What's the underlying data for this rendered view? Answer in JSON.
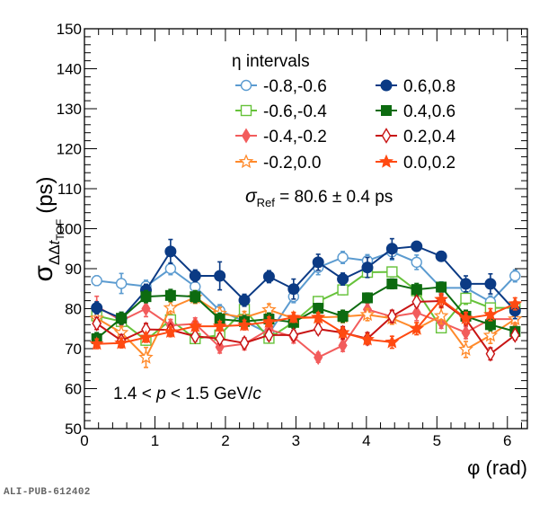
{
  "chart_data": {
    "type": "line",
    "title": "",
    "xlabel": "φ (rad)",
    "ylabel": {
      "main": "σ",
      "sub1": "ΔΔ",
      "sub_italic": "t",
      "sub2": "TOF",
      "unit": "(ps)"
    },
    "xlim": [
      0,
      6.2832
    ],
    "ylim": [
      50,
      150
    ],
    "xticks": [
      "0",
      "1",
      "2",
      "3",
      "4",
      "5",
      "6"
    ],
    "yticks": [
      "50",
      "60",
      "70",
      "80",
      "90",
      "100",
      "110",
      "120",
      "130",
      "140",
      "150"
    ],
    "grid": false,
    "legend": {
      "title": "η intervals",
      "position": "top-center",
      "columns": 2
    },
    "annotations": {
      "sigma_ref": {
        "symbol": "σ",
        "sub": "Ref",
        "text": " = 80.6 ± 0.4 ps"
      },
      "momentum": {
        "pre": "1.4 < ",
        "var": "p",
        "mid": " < 1.5 GeV/",
        "var2": "c"
      }
    },
    "x": [
      0.1745,
      0.5236,
      0.8727,
      1.2217,
      1.5708,
      1.9199,
      2.2689,
      2.618,
      2.9671,
      3.3161,
      3.6652,
      4.0143,
      4.3633,
      4.7124,
      5.0615,
      5.4105,
      5.7596,
      6.1087
    ],
    "series": [
      {
        "name": "-0.8,-0.6",
        "color": "#5b9bd0",
        "marker": "open-circle",
        "values": [
          87.0,
          86.3,
          85.6,
          90.0,
          85.5,
          79.5,
          76.8,
          73.8,
          83.0,
          90.3,
          92.8,
          92.0,
          94.2,
          91.6,
          85.2,
          85.2,
          81.7,
          88.2
        ],
        "errors": [
          1.2,
          2.5,
          1.5,
          1.5,
          1.5,
          1.5,
          1.5,
          1.5,
          1.5,
          1.8,
          1.5,
          1.5,
          2.0,
          1.8,
          1.5,
          2.0,
          1.5,
          1.5
        ]
      },
      {
        "name": "-0.6,-0.4",
        "color": "#66c23a",
        "marker": "open-square",
        "values": [
          78.2,
          76.8,
          72.1,
          77.2,
          72.5,
          73.4,
          79.8,
          72.6,
          76.6,
          81.8,
          84.7,
          89.1,
          89.2,
          84.5,
          75.2,
          82.6,
          80.2,
          80.2
        ],
        "errors": [
          1.2,
          1.2,
          1.2,
          1.2,
          1.2,
          1.2,
          1.2,
          1.2,
          1.2,
          1.2,
          1.2,
          1.2,
          1.2,
          1.2,
          1.2,
          1.5,
          1.2,
          1.2
        ]
      },
      {
        "name": "-0.4,-0.2",
        "color": "#f25c5c",
        "marker": "filled-diamond",
        "values": [
          80.6,
          77.0,
          80.0,
          75.8,
          76.2,
          70.4,
          71.2,
          74.8,
          72.9,
          67.8,
          70.8,
          79.8,
          78.0,
          79.0,
          76.6,
          74.0,
          77.4,
          77.4
        ],
        "errors": [
          2.5,
          1.5,
          2.0,
          1.5,
          1.5,
          1.5,
          1.5,
          1.5,
          1.5,
          1.2,
          1.5,
          1.5,
          1.5,
          2.0,
          1.5,
          1.5,
          1.5,
          1.5
        ]
      },
      {
        "name": "-0.2,0.0",
        "color": "#ff8a2b",
        "marker": "open-star",
        "values": [
          77.6,
          74.0,
          67.8,
          80.2,
          82.8,
          78.8,
          77.8,
          79.7,
          77.6,
          77.8,
          78.0,
          78.5,
          77.6,
          75.0,
          78.2,
          69.8,
          73.3,
          77.4
        ],
        "errors": [
          1.5,
          1.5,
          2.5,
          1.5,
          1.5,
          1.5,
          1.5,
          1.5,
          1.5,
          1.5,
          1.5,
          1.5,
          1.5,
          1.5,
          2.0,
          2.0,
          2.0,
          1.5
        ]
      },
      {
        "name": "0.6,0.8",
        "color": "#0b3a84",
        "marker": "filled-circle",
        "values": [
          80.2,
          77.6,
          84.6,
          94.3,
          88.2,
          88.2,
          82.1,
          88.0,
          84.9,
          91.6,
          87.4,
          90.3,
          95.0,
          95.6,
          93.1,
          86.2,
          86.2,
          79.5
        ],
        "errors": [
          1.5,
          1.5,
          1.5,
          3.0,
          1.5,
          3.5,
          1.5,
          1.5,
          2.5,
          2.0,
          1.5,
          2.5,
          2.5,
          1.2,
          1.2,
          2.0,
          2.5,
          2.0
        ]
      },
      {
        "name": "0.4,0.6",
        "color": "#0d6b10",
        "marker": "filled-square",
        "values": [
          72.5,
          77.6,
          83.0,
          83.3,
          83.0,
          77.4,
          76.8,
          77.4,
          76.6,
          80.1,
          78.1,
          82.7,
          86.2,
          84.8,
          85.4,
          78.1,
          76.0,
          74.3
        ],
        "errors": [
          1.5,
          1.5,
          1.5,
          1.5,
          1.5,
          1.5,
          1.5,
          1.5,
          1.5,
          1.2,
          1.5,
          1.2,
          1.2,
          1.5,
          1.2,
          1.5,
          1.5,
          1.2
        ]
      },
      {
        "name": "0.2,0.4",
        "color": "#c81414",
        "marker": "open-diamond",
        "values": [
          76.3,
          72.0,
          74.8,
          74.7,
          73.1,
          72.5,
          71.4,
          73.4,
          73.4,
          74.9,
          74.0,
          72.5,
          78.1,
          81.7,
          81.9,
          77.4,
          68.7,
          73.4
        ],
        "errors": [
          1.5,
          1.5,
          1.5,
          1.2,
          1.2,
          1.2,
          1.2,
          1.2,
          1.2,
          1.2,
          1.5,
          1.5,
          1.5,
          1.2,
          1.5,
          1.5,
          1.5,
          1.2
        ]
      },
      {
        "name": "0.0,0.2",
        "color": "#ff4a12",
        "marker": "filled-star",
        "values": [
          71.2,
          71.4,
          72.8,
          74.2,
          75.6,
          75.6,
          75.9,
          76.7,
          77.8,
          77.8,
          74.0,
          72.3,
          71.6,
          75.0,
          82.3,
          77.6,
          78.5,
          81.2
        ],
        "errors": [
          1.2,
          1.2,
          1.2,
          1.2,
          1.2,
          1.2,
          1.2,
          1.2,
          1.2,
          1.2,
          1.2,
          1.2,
          1.5,
          1.5,
          1.5,
          1.5,
          1.5,
          1.5
        ]
      }
    ]
  },
  "footer": {
    "watermark": "ALI-PUB-612402"
  }
}
